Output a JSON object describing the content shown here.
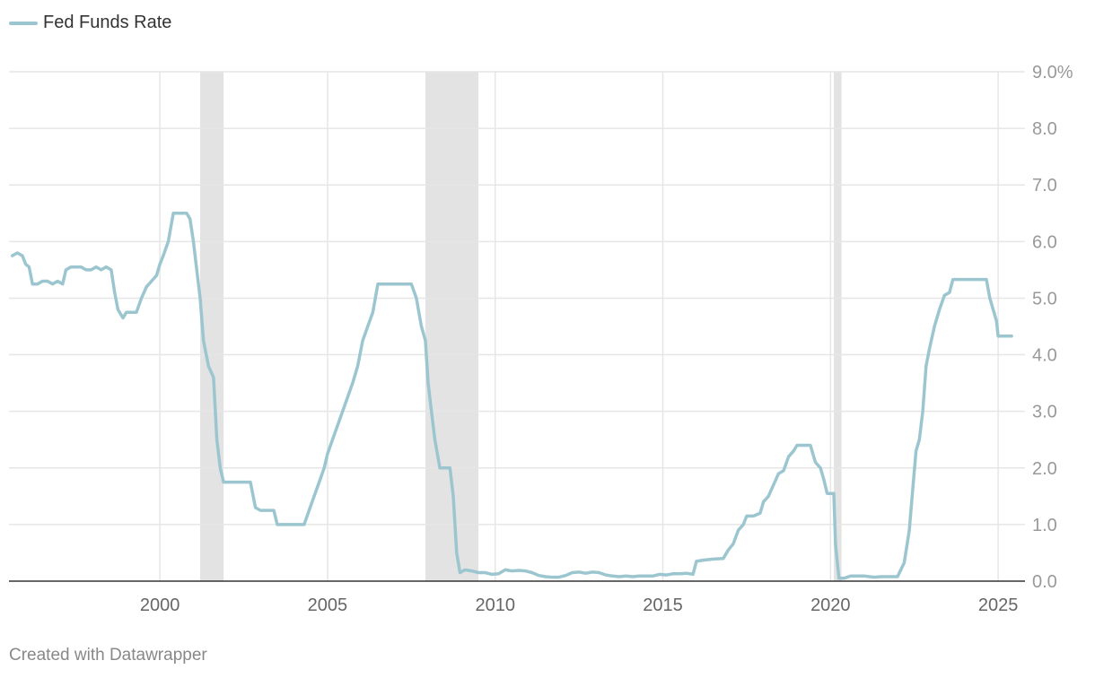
{
  "legend": {
    "label": "Fed Funds Rate"
  },
  "footer": {
    "credit": "Created with Datawrapper"
  },
  "colors": {
    "series": "#9cc6cf",
    "recession": "#e3e3e3",
    "grid": "#e6e6e6",
    "baseline": "#333333"
  },
  "chart_data": {
    "type": "line",
    "title": "",
    "xlabel": "",
    "ylabel": "",
    "xlim": [
      1995.5,
      2025.8
    ],
    "ylim": [
      0,
      9
    ],
    "y_axis_position": "right",
    "yticks": [
      {
        "value": 9,
        "label": "9.0%"
      },
      {
        "value": 8,
        "label": "8.0"
      },
      {
        "value": 7,
        "label": "7.0"
      },
      {
        "value": 6,
        "label": "6.0"
      },
      {
        "value": 5,
        "label": "5.0"
      },
      {
        "value": 4,
        "label": "4.0"
      },
      {
        "value": 3,
        "label": "3.0"
      },
      {
        "value": 2,
        "label": "2.0"
      },
      {
        "value": 1,
        "label": "1.0"
      },
      {
        "value": 0,
        "label": "0.0"
      }
    ],
    "xticks": [
      {
        "value": 2000,
        "label": "2000"
      },
      {
        "value": 2005,
        "label": "2005"
      },
      {
        "value": 2010,
        "label": "2010"
      },
      {
        "value": 2015,
        "label": "2015"
      },
      {
        "value": 2020,
        "label": "2020"
      },
      {
        "value": 2025,
        "label": "2025"
      }
    ],
    "grid": true,
    "legend_position": "top-left",
    "recessions": [
      {
        "start": 2001.2,
        "end": 2001.9
      },
      {
        "start": 2007.92,
        "end": 2009.5
      },
      {
        "start": 2020.1,
        "end": 2020.33
      }
    ],
    "series": [
      {
        "name": "Fed Funds Rate",
        "points": [
          [
            1995.6,
            5.75
          ],
          [
            1995.75,
            5.8
          ],
          [
            1995.9,
            5.75
          ],
          [
            1996.0,
            5.6
          ],
          [
            1996.1,
            5.55
          ],
          [
            1996.2,
            5.25
          ],
          [
            1996.35,
            5.25
          ],
          [
            1996.5,
            5.3
          ],
          [
            1996.65,
            5.3
          ],
          [
            1996.8,
            5.25
          ],
          [
            1996.95,
            5.3
          ],
          [
            1997.1,
            5.25
          ],
          [
            1997.2,
            5.5
          ],
          [
            1997.35,
            5.55
          ],
          [
            1997.5,
            5.55
          ],
          [
            1997.65,
            5.55
          ],
          [
            1997.8,
            5.5
          ],
          [
            1997.95,
            5.5
          ],
          [
            1998.1,
            5.55
          ],
          [
            1998.25,
            5.5
          ],
          [
            1998.4,
            5.55
          ],
          [
            1998.55,
            5.5
          ],
          [
            1998.65,
            5.1
          ],
          [
            1998.75,
            4.8
          ],
          [
            1998.9,
            4.65
          ],
          [
            1999.0,
            4.75
          ],
          [
            1999.15,
            4.75
          ],
          [
            1999.3,
            4.75
          ],
          [
            1999.45,
            5.0
          ],
          [
            1999.6,
            5.2
          ],
          [
            1999.75,
            5.3
          ],
          [
            1999.9,
            5.4
          ],
          [
            2000.0,
            5.6
          ],
          [
            2000.1,
            5.75
          ],
          [
            2000.25,
            6.0
          ],
          [
            2000.4,
            6.5
          ],
          [
            2000.6,
            6.5
          ],
          [
            2000.8,
            6.5
          ],
          [
            2000.9,
            6.4
          ],
          [
            2001.0,
            6.0
          ],
          [
            2001.1,
            5.5
          ],
          [
            2001.2,
            5.0
          ],
          [
            2001.3,
            4.25
          ],
          [
            2001.45,
            3.8
          ],
          [
            2001.6,
            3.6
          ],
          [
            2001.7,
            2.5
          ],
          [
            2001.8,
            2.0
          ],
          [
            2001.9,
            1.75
          ],
          [
            2002.1,
            1.75
          ],
          [
            2002.3,
            1.75
          ],
          [
            2002.5,
            1.75
          ],
          [
            2002.7,
            1.75
          ],
          [
            2002.85,
            1.3
          ],
          [
            2003.0,
            1.25
          ],
          [
            2003.2,
            1.25
          ],
          [
            2003.4,
            1.25
          ],
          [
            2003.5,
            1.0
          ],
          [
            2003.7,
            1.0
          ],
          [
            2003.9,
            1.0
          ],
          [
            2004.1,
            1.0
          ],
          [
            2004.3,
            1.0
          ],
          [
            2004.45,
            1.25
          ],
          [
            2004.6,
            1.5
          ],
          [
            2004.75,
            1.75
          ],
          [
            2004.9,
            2.0
          ],
          [
            2005.0,
            2.25
          ],
          [
            2005.15,
            2.5
          ],
          [
            2005.3,
            2.75
          ],
          [
            2005.45,
            3.0
          ],
          [
            2005.6,
            3.25
          ],
          [
            2005.75,
            3.5
          ],
          [
            2005.9,
            3.8
          ],
          [
            2006.05,
            4.25
          ],
          [
            2006.2,
            4.5
          ],
          [
            2006.35,
            4.75
          ],
          [
            2006.5,
            5.25
          ],
          [
            2006.7,
            5.25
          ],
          [
            2006.9,
            5.25
          ],
          [
            2007.1,
            5.25
          ],
          [
            2007.3,
            5.25
          ],
          [
            2007.5,
            5.25
          ],
          [
            2007.65,
            5.0
          ],
          [
            2007.8,
            4.5
          ],
          [
            2007.92,
            4.25
          ],
          [
            2008.0,
            3.5
          ],
          [
            2008.1,
            3.0
          ],
          [
            2008.2,
            2.5
          ],
          [
            2008.35,
            2.0
          ],
          [
            2008.5,
            2.0
          ],
          [
            2008.65,
            2.0
          ],
          [
            2008.75,
            1.5
          ],
          [
            2008.85,
            0.5
          ],
          [
            2008.95,
            0.15
          ],
          [
            2009.1,
            0.2
          ],
          [
            2009.3,
            0.18
          ],
          [
            2009.5,
            0.15
          ],
          [
            2009.7,
            0.15
          ],
          [
            2009.9,
            0.12
          ],
          [
            2010.1,
            0.13
          ],
          [
            2010.3,
            0.2
          ],
          [
            2010.5,
            0.18
          ],
          [
            2010.7,
            0.19
          ],
          [
            2010.9,
            0.18
          ],
          [
            2011.1,
            0.15
          ],
          [
            2011.3,
            0.1
          ],
          [
            2011.5,
            0.08
          ],
          [
            2011.7,
            0.07
          ],
          [
            2011.9,
            0.07
          ],
          [
            2012.1,
            0.1
          ],
          [
            2012.3,
            0.15
          ],
          [
            2012.5,
            0.16
          ],
          [
            2012.7,
            0.14
          ],
          [
            2012.9,
            0.16
          ],
          [
            2013.1,
            0.15
          ],
          [
            2013.3,
            0.11
          ],
          [
            2013.5,
            0.09
          ],
          [
            2013.7,
            0.08
          ],
          [
            2013.9,
            0.09
          ],
          [
            2014.1,
            0.08
          ],
          [
            2014.3,
            0.09
          ],
          [
            2014.5,
            0.09
          ],
          [
            2014.7,
            0.09
          ],
          [
            2014.9,
            0.12
          ],
          [
            2015.1,
            0.11
          ],
          [
            2015.3,
            0.13
          ],
          [
            2015.5,
            0.13
          ],
          [
            2015.7,
            0.14
          ],
          [
            2015.9,
            0.12
          ],
          [
            2016.0,
            0.35
          ],
          [
            2016.2,
            0.37
          ],
          [
            2016.5,
            0.39
          ],
          [
            2016.8,
            0.4
          ],
          [
            2016.95,
            0.55
          ],
          [
            2017.1,
            0.66
          ],
          [
            2017.25,
            0.9
          ],
          [
            2017.4,
            1.0
          ],
          [
            2017.5,
            1.15
          ],
          [
            2017.7,
            1.15
          ],
          [
            2017.9,
            1.2
          ],
          [
            2018.0,
            1.4
          ],
          [
            2018.15,
            1.5
          ],
          [
            2018.3,
            1.7
          ],
          [
            2018.45,
            1.9
          ],
          [
            2018.6,
            1.95
          ],
          [
            2018.75,
            2.2
          ],
          [
            2018.9,
            2.3
          ],
          [
            2019.0,
            2.4
          ],
          [
            2019.2,
            2.4
          ],
          [
            2019.4,
            2.4
          ],
          [
            2019.55,
            2.1
          ],
          [
            2019.7,
            2.0
          ],
          [
            2019.8,
            1.8
          ],
          [
            2019.9,
            1.55
          ],
          [
            2020.0,
            1.55
          ],
          [
            2020.1,
            1.55
          ],
          [
            2020.15,
            0.65
          ],
          [
            2020.25,
            0.05
          ],
          [
            2020.4,
            0.05
          ],
          [
            2020.6,
            0.09
          ],
          [
            2020.8,
            0.09
          ],
          [
            2021.0,
            0.09
          ],
          [
            2021.3,
            0.07
          ],
          [
            2021.5,
            0.08
          ],
          [
            2021.7,
            0.08
          ],
          [
            2021.9,
            0.08
          ],
          [
            2022.0,
            0.08
          ],
          [
            2022.2,
            0.33
          ],
          [
            2022.35,
            0.9
          ],
          [
            2022.45,
            1.6
          ],
          [
            2022.55,
            2.3
          ],
          [
            2022.65,
            2.5
          ],
          [
            2022.75,
            3.0
          ],
          [
            2022.85,
            3.8
          ],
          [
            2022.95,
            4.1
          ],
          [
            2023.1,
            4.5
          ],
          [
            2023.25,
            4.8
          ],
          [
            2023.4,
            5.05
          ],
          [
            2023.55,
            5.1
          ],
          [
            2023.65,
            5.33
          ],
          [
            2023.9,
            5.33
          ],
          [
            2024.2,
            5.33
          ],
          [
            2024.5,
            5.33
          ],
          [
            2024.65,
            5.33
          ],
          [
            2024.75,
            5.0
          ],
          [
            2024.85,
            4.8
          ],
          [
            2024.95,
            4.6
          ],
          [
            2025.0,
            4.33
          ],
          [
            2025.2,
            4.33
          ],
          [
            2025.4,
            4.33
          ]
        ]
      }
    ]
  }
}
